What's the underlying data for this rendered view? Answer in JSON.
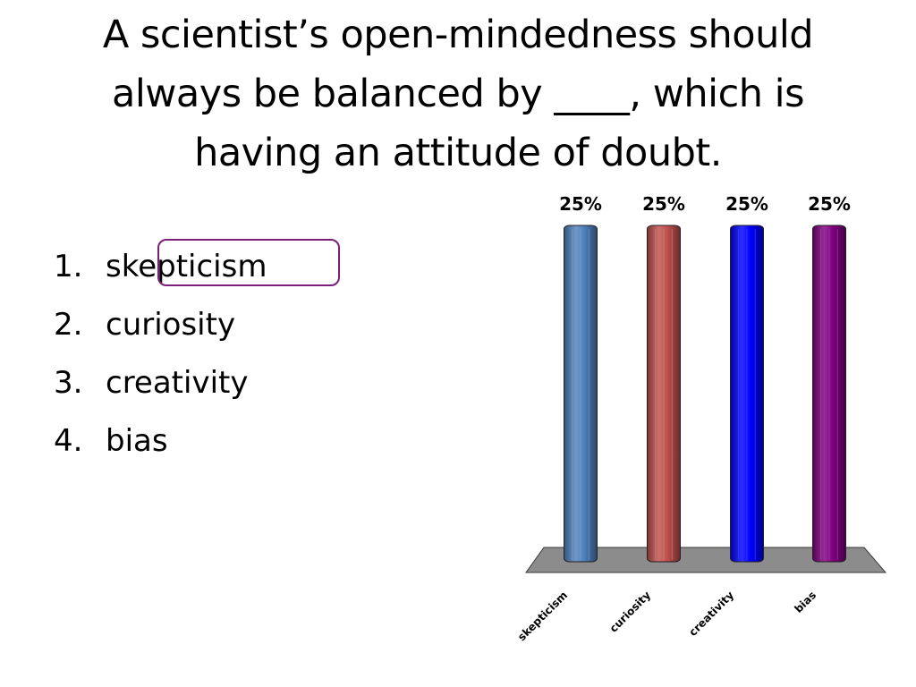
{
  "slide": {
    "title_lines": [
      "A scientist’s open-mindedness should",
      "always be balanced by ____, which is",
      "having an attitude of doubt."
    ]
  },
  "answers": [
    {
      "number": "1.",
      "text": "skepticism",
      "correct": true
    },
    {
      "number": "2.",
      "text": "curiosity",
      "correct": false
    },
    {
      "number": "3.",
      "text": "creativity",
      "correct": false
    },
    {
      "number": "4.",
      "text": "bias",
      "correct": false
    }
  ],
  "chart_data": {
    "type": "bar",
    "categories": [
      "skepticism",
      "curiosity",
      "creativity",
      "bias"
    ],
    "values": [
      25,
      25,
      25,
      25
    ],
    "value_labels": [
      "25%",
      "25%",
      "25%",
      "25%"
    ],
    "ylim": [
      0,
      25
    ],
    "colors": [
      "#4f81bd",
      "#c0504d",
      "#0000ff",
      "#800080"
    ],
    "base_color": "#8c8c8c",
    "grid": false,
    "legend": "none"
  }
}
